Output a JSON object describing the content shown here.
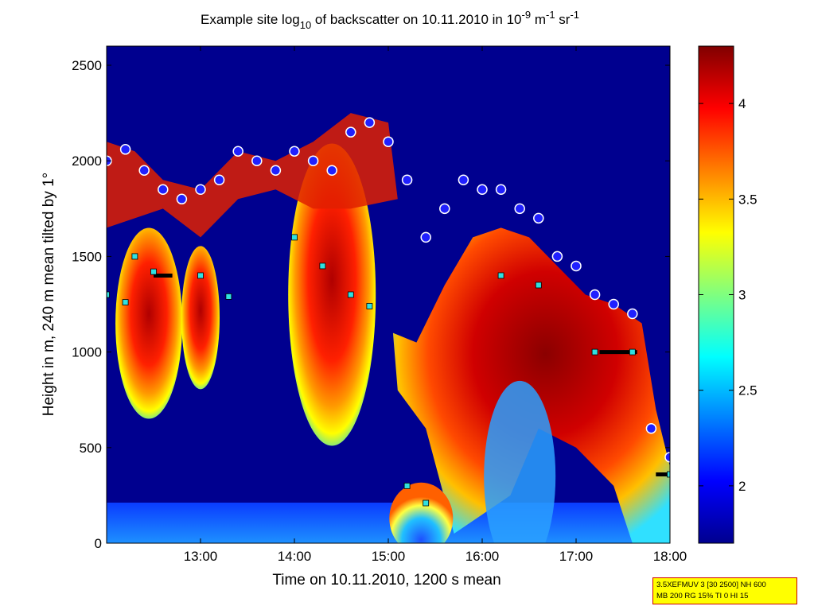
{
  "chart_data": {
    "type": "heatmap",
    "title": {
      "prefix": "Example site log",
      "base_subscript": "10",
      "middle": " of backscatter on 10.11.2010 in 10",
      "exponent1": "-9",
      "unit1": " m",
      "exponent2": "-1",
      "unit2": " sr",
      "exponent3": "-1"
    },
    "xlabel": "Time on 10.11.2010, 1200 s mean",
    "ylabel": "Height in m, 240 m mean tilted by 1°",
    "x_range": [
      "12:00",
      "18:00"
    ],
    "x_ticks": [
      "13:00",
      "14:00",
      "15:00",
      "16:00",
      "17:00",
      "18:00"
    ],
    "ylim": [
      0,
      2600
    ],
    "y_ticks": [
      0,
      500,
      1000,
      1500,
      2000,
      2500
    ],
    "colorbar": {
      "colormap": "jet",
      "range": [
        1.7,
        4.3
      ],
      "ticks": [
        "2",
        "2.5",
        "3",
        "3.5",
        "4"
      ]
    },
    "grid": false,
    "layer_heights": {
      "description": "marker series: MLH/cloud layer detections",
      "blue_circles_top_layer_m": [
        [
          12.0,
          2000
        ],
        [
          12.2,
          2060
        ],
        [
          12.4,
          1950
        ],
        [
          12.6,
          1850
        ],
        [
          12.8,
          1800
        ],
        [
          13.0,
          1850
        ],
        [
          13.2,
          1900
        ],
        [
          13.4,
          2050
        ],
        [
          13.6,
          2000
        ],
        [
          13.8,
          1950
        ],
        [
          14.0,
          2050
        ],
        [
          14.2,
          2000
        ],
        [
          14.4,
          1950
        ],
        [
          14.6,
          2150
        ],
        [
          14.8,
          2200
        ],
        [
          15.0,
          2100
        ],
        [
          15.2,
          1900
        ],
        [
          15.4,
          1600
        ],
        [
          15.6,
          1750
        ],
        [
          15.8,
          1900
        ],
        [
          16.0,
          1850
        ],
        [
          16.2,
          1850
        ],
        [
          16.4,
          1750
        ],
        [
          16.6,
          1700
        ],
        [
          16.8,
          1500
        ],
        [
          17.0,
          1450
        ],
        [
          17.2,
          1300
        ],
        [
          17.4,
          1250
        ],
        [
          17.6,
          1200
        ],
        [
          17.8,
          600
        ],
        [
          18.0,
          450
        ]
      ],
      "cyan_squares_lower_layer_m": [
        [
          12.0,
          1300
        ],
        [
          12.2,
          1260
        ],
        [
          12.3,
          1500
        ],
        [
          12.5,
          1420
        ],
        [
          13.0,
          1400
        ],
        [
          13.3,
          1290
        ],
        [
          14.0,
          1600
        ],
        [
          14.3,
          1450
        ],
        [
          14.6,
          1300
        ],
        [
          14.8,
          1240
        ],
        [
          15.2,
          300
        ],
        [
          15.4,
          210
        ],
        [
          16.2,
          1400
        ],
        [
          16.6,
          1350
        ],
        [
          17.2,
          1000
        ],
        [
          17.6,
          1000
        ],
        [
          18.0,
          360
        ]
      ],
      "black_segments_m": [
        [
          [
            12.5,
            1400
          ],
          [
            12.7,
            1400
          ]
        ],
        [
          [
            17.25,
            1000
          ],
          [
            17.65,
            1000
          ]
        ],
        [
          [
            17.85,
            360
          ],
          [
            18.0,
            360
          ]
        ]
      ]
    },
    "surface_layer_m": [
      0,
      200
    ],
    "annotation": {
      "line1": "3.5XEFMUV 3 [30 2500] NH 600",
      "line2": "MB 200 RG 15% TI 0 HI 15"
    }
  }
}
